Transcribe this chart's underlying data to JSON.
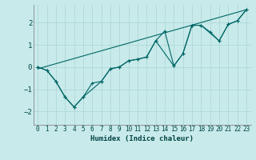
{
  "xlabel": "Humidex (Indice chaleur)",
  "background_color": "#c8eaea",
  "grid_color": "#b0d8d8",
  "line_color": "#006666",
  "xlim": [
    -0.5,
    23.5
  ],
  "ylim": [
    -2.6,
    2.8
  ],
  "yticks": [
    -2,
    -1,
    0,
    1,
    2
  ],
  "xticks": [
    0,
    1,
    2,
    3,
    4,
    5,
    6,
    7,
    8,
    9,
    10,
    11,
    12,
    13,
    14,
    15,
    16,
    17,
    18,
    19,
    20,
    21,
    22,
    23
  ],
  "series1_x": [
    0,
    1,
    2,
    3,
    4,
    5,
    6,
    7,
    8,
    9,
    10,
    11,
    12,
    13,
    14,
    15,
    16,
    17,
    18,
    19,
    20,
    21,
    22,
    23
  ],
  "series1_y": [
    0.0,
    -0.15,
    -0.65,
    -1.35,
    -1.8,
    -1.35,
    -0.72,
    -0.65,
    -0.08,
    0.0,
    0.28,
    0.35,
    0.45,
    1.18,
    1.62,
    0.05,
    0.6,
    1.88,
    1.88,
    1.58,
    1.18,
    1.92,
    2.08,
    2.58
  ],
  "series2_x": [
    0,
    1,
    2,
    3,
    4,
    5,
    7,
    8,
    9,
    10,
    11,
    12,
    13,
    15,
    16,
    17,
    18,
    20,
    21,
    22,
    23
  ],
  "series2_y": [
    0.0,
    -0.15,
    -0.65,
    -1.35,
    -1.8,
    -1.35,
    -0.65,
    -0.08,
    0.0,
    0.28,
    0.35,
    0.45,
    1.18,
    0.05,
    0.6,
    1.88,
    1.88,
    1.18,
    1.92,
    2.08,
    2.58
  ],
  "series3_x": [
    0,
    23
  ],
  "series3_y": [
    -0.08,
    2.58
  ]
}
